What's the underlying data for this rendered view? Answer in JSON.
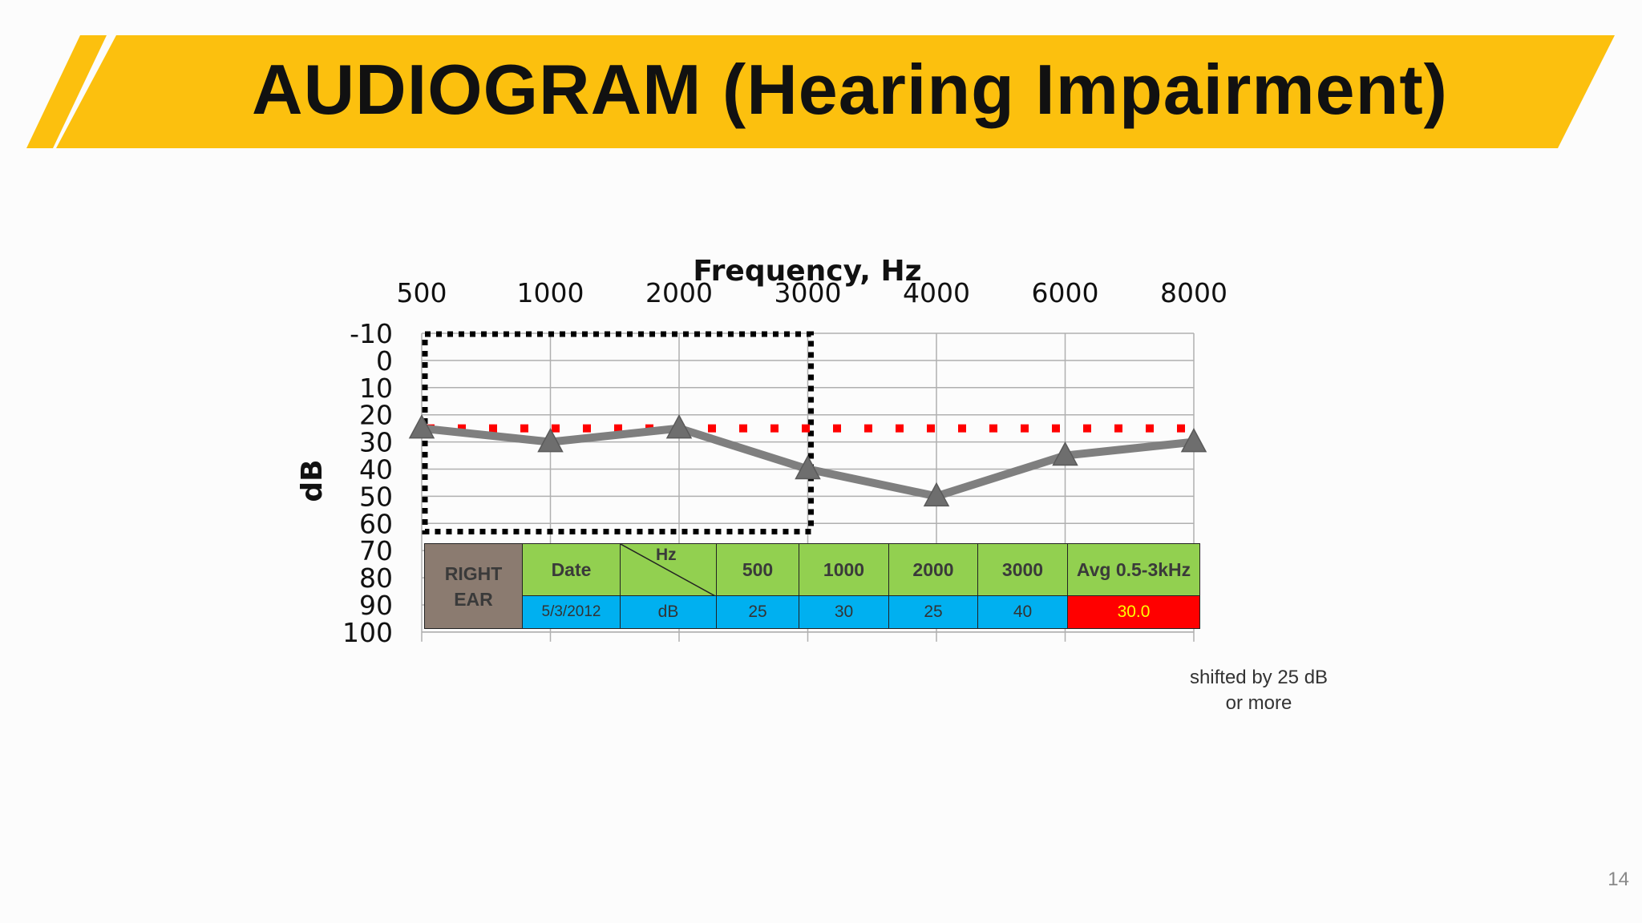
{
  "title": "AUDIOGRAM (Hearing Impairment)",
  "page_number": "14",
  "note": {
    "line1": "shifted by 25 dB",
    "line2": "or more"
  },
  "colors": {
    "banner": "#fcc00e",
    "curve": "#7f7f7f",
    "threshold": "#ff0000",
    "table_header": "#92d050",
    "table_values": "#00b0f0",
    "ear_cell": "#8b7b70",
    "avg_value_bg": "#ff0000",
    "avg_value_text": "#ffff00"
  },
  "chart_data": {
    "type": "line",
    "title": "Frequency, Hz",
    "xlabel": "Frequency, Hz",
    "ylabel": "dB",
    "categories": [
      "500",
      "1000",
      "2000",
      "3000",
      "4000",
      "6000",
      "8000"
    ],
    "y_ticks": [
      "-10",
      "0",
      "10",
      "20",
      "30",
      "40",
      "50",
      "60",
      "70",
      "80",
      "90",
      "100"
    ],
    "ylim": [
      -10,
      100
    ],
    "y_inverted": true,
    "x_axis_position": "top",
    "grid": true,
    "series": [
      {
        "values": [
          25,
          30,
          25,
          40,
          50,
          35,
          30
        ],
        "marker": "triangle"
      }
    ],
    "threshold": {
      "value": 25,
      "style": "dotted"
    },
    "highlight_box": {
      "x_from": "500",
      "x_to": "3000",
      "y_from": -10,
      "y_to": 63,
      "style": "dotted"
    }
  },
  "table": {
    "ear": "RIGHT EAR",
    "date_header": "Date",
    "hz_label": "Hz",
    "db_label": "dB",
    "date": "5/3/2012",
    "frequencies": [
      "500",
      "1000",
      "2000",
      "3000"
    ],
    "values": [
      "25",
      "30",
      "25",
      "40"
    ],
    "avg_header": "Avg 0.5-3kHz",
    "avg_value": "30.0"
  }
}
